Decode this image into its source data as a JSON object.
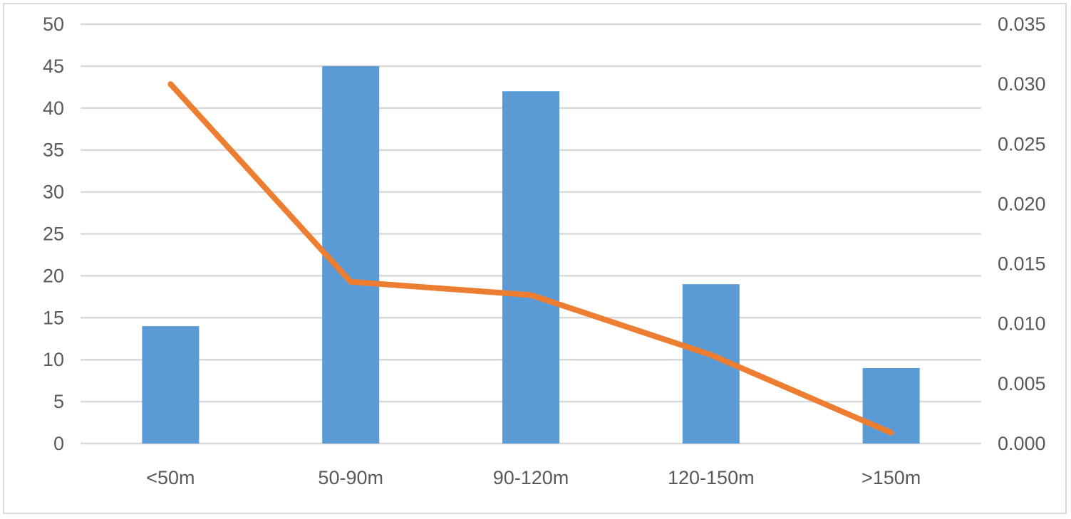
{
  "chart_data": {
    "type": "bar+line",
    "categories": [
      "<50m",
      "50-90m",
      "90-120m",
      "120-150m",
      ">150m"
    ],
    "series": [
      {
        "type": "bar",
        "axis": "left",
        "values": [
          14,
          45,
          42,
          19,
          9
        ],
        "color": "#5b9bd5"
      },
      {
        "type": "line",
        "axis": "right",
        "values": [
          0.03,
          0.0135,
          0.0124,
          0.0074,
          0.0009
        ],
        "color": "#ed7d31"
      }
    ],
    "y_left": {
      "range": [
        0,
        50
      ],
      "ticks": [
        "0",
        "5",
        "10",
        "15",
        "20",
        "25",
        "30",
        "35",
        "40",
        "45",
        "50"
      ]
    },
    "y_right": {
      "range": [
        0,
        0.035
      ],
      "ticks": [
        "0.000",
        "0.005",
        "0.010",
        "0.015",
        "0.020",
        "0.025",
        "0.030",
        "0.035"
      ]
    },
    "grid": true,
    "legend": "none",
    "title": "",
    "xlabel": "",
    "ylabel": ""
  }
}
